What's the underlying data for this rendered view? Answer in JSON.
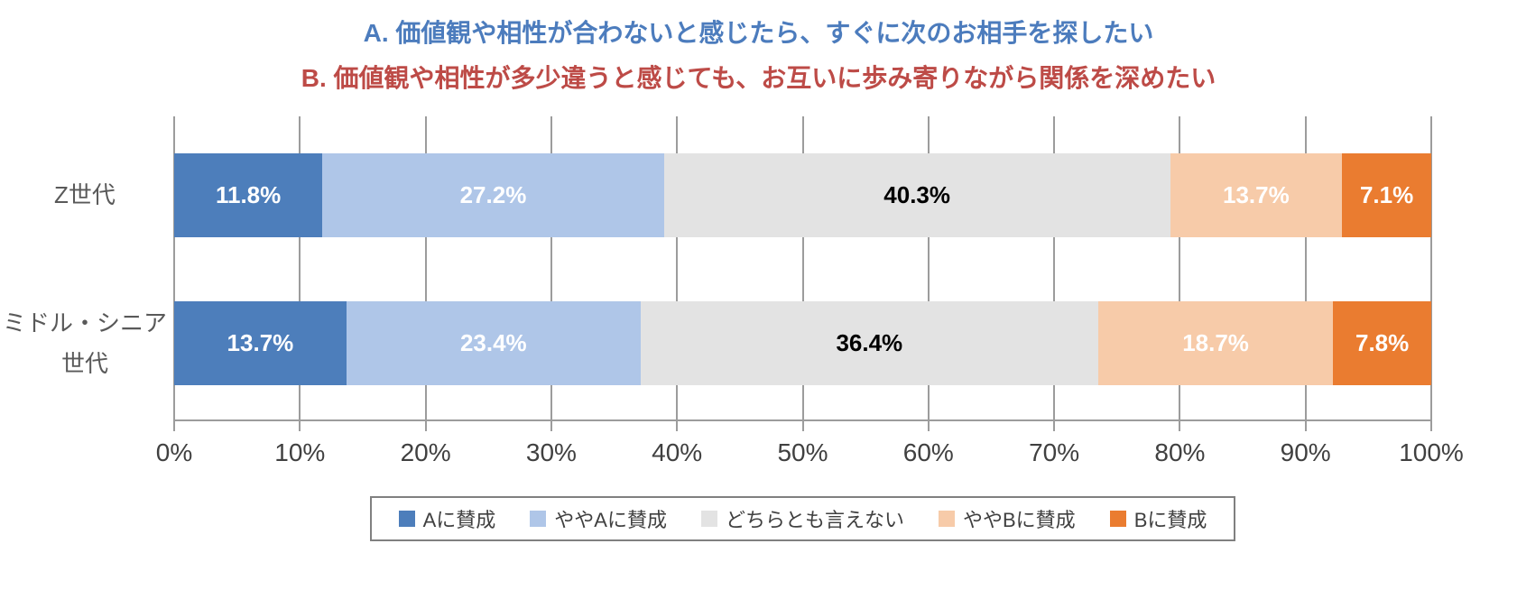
{
  "titles": {
    "line_a": {
      "text": "A. 価値観や相性が合わないと感じたら、すぐに次のお相手を探したい",
      "color": "#4C7CBD"
    },
    "line_b": {
      "text": "B. 価値観や相性が多少違うと感じても、お互いに歩み寄りながら関係を深めたい",
      "color": "#BD4B47"
    }
  },
  "chart_data": {
    "type": "bar",
    "variant": "horizontal-stacked-100",
    "categories": [
      "Z世代",
      "ミドル・シニア\n世代"
    ],
    "series": [
      {
        "name": "Aに賛成",
        "color": "#4D7EBB",
        "label_color": "#FFFFFF",
        "values": [
          11.8,
          13.7
        ]
      },
      {
        "name": "ややAに賛成",
        "color": "#AFC6E8",
        "label_color": "#FFFFFF",
        "values": [
          27.2,
          23.4
        ]
      },
      {
        "name": "どちらとも言えない",
        "color": "#E3E3E3",
        "label_color": "#000000",
        "values": [
          40.3,
          36.4
        ]
      },
      {
        "name": "ややBに賛成",
        "color": "#F7CBA9",
        "label_color": "#FFFFFF",
        "values": [
          13.7,
          18.7
        ]
      },
      {
        "name": "Bに賛成",
        "color": "#EA7C30",
        "label_color": "#FFFFFF",
        "values": [
          7.1,
          7.8
        ]
      }
    ],
    "value_suffix": "%",
    "value_decimals": 1,
    "xlim": [
      0,
      100
    ],
    "x_ticks": [
      "0%",
      "10%",
      "20%",
      "30%",
      "40%",
      "50%",
      "60%",
      "70%",
      "80%",
      "90%",
      "100%"
    ],
    "grid": true,
    "legend_position": "bottom",
    "axis_color": "#9C9C9C",
    "tick_label_color": "#404040",
    "category_label_color": "#595959",
    "legend_text_color": "#404040"
  }
}
